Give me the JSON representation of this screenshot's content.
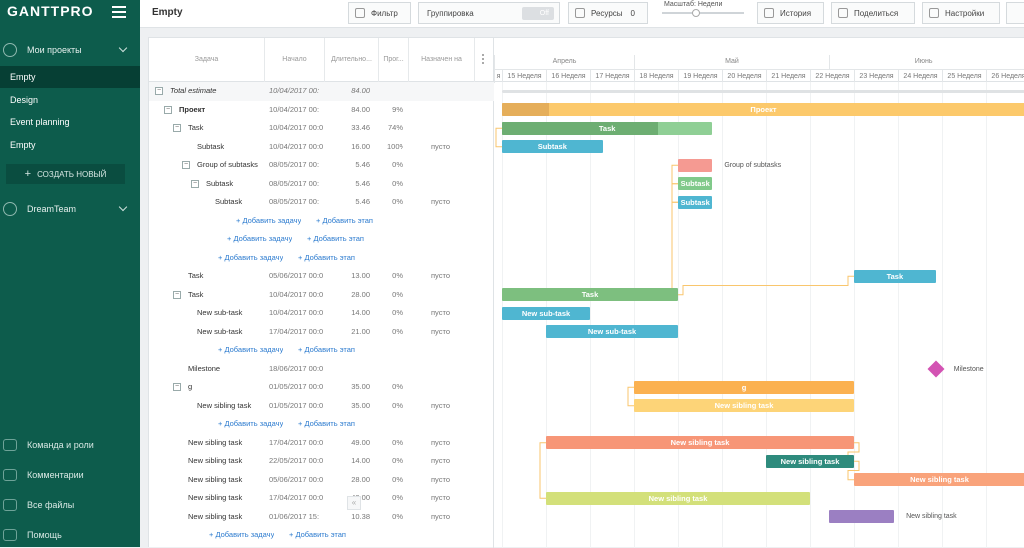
{
  "app": {
    "logo": "GANTTPRO",
    "project_title": "Empty"
  },
  "sidebar": {
    "my_projects": "Мои проекты",
    "projects": [
      {
        "label": "Empty",
        "active": true
      },
      {
        "label": "Design",
        "active": false
      },
      {
        "label": "Event planning",
        "active": false
      },
      {
        "label": "Empty",
        "active": false
      }
    ],
    "create_button": "СОЗДАТЬ НОВЫЙ",
    "team": "DreamTeam",
    "footer": [
      "Команда и роли",
      "Комментарии",
      "Все файлы",
      "Помощь"
    ]
  },
  "header": {
    "filter": "Фильтр",
    "grouping": "Группировка",
    "grouping_toggle": "Off",
    "resources": "Ресурсы",
    "resources_count": "0",
    "zoom_label": "Масштаб: Недели",
    "history": "История",
    "share": "Поделиться",
    "settings": "Настройки"
  },
  "grid": {
    "columns": [
      "Задача",
      "Начало",
      "Длительно...",
      "Прог...",
      "Назначен на"
    ],
    "rows": [
      {
        "type": "total",
        "name": "Total estimate",
        "start": "10/04/2017 00:",
        "duration": "84.00",
        "progress": "",
        "assigned": "",
        "indent": 0,
        "toggle": true
      },
      {
        "type": "task",
        "name": "Проект",
        "bold": true,
        "start": "10/04/2017 00:",
        "duration": "84.00",
        "progress": "9%",
        "assigned": "",
        "indent": 1,
        "toggle": true
      },
      {
        "type": "task",
        "name": "Task",
        "start": "10/04/2017 00:0",
        "duration": "33.46",
        "progress": "74%",
        "assigned": "",
        "indent": 2,
        "toggle": true
      },
      {
        "type": "task",
        "name": "Subtask",
        "start": "10/04/2017 00:0",
        "duration": "16.00",
        "progress": "100%",
        "assigned": "пусто",
        "indent": 3,
        "toggle": false
      },
      {
        "type": "task",
        "name": "Group of subtasks",
        "start": "08/05/2017 00:",
        "duration": "5.46",
        "progress": "0%",
        "assigned": "",
        "indent": 3,
        "toggle": true
      },
      {
        "type": "task",
        "name": "Subtask",
        "start": "08/05/2017 00:",
        "duration": "5.46",
        "progress": "0%",
        "assigned": "",
        "indent": 4,
        "toggle": true
      },
      {
        "type": "task",
        "name": "Subtask",
        "start": "08/05/2017 00:",
        "duration": "5.46",
        "progress": "0%",
        "assigned": "пусто",
        "indent": 5,
        "toggle": false
      },
      {
        "type": "add",
        "task": "+ Добавить задачу",
        "stage": "+ Добавить этап",
        "indent": 5
      },
      {
        "type": "add",
        "task": "+ Добавить задачу",
        "stage": "+ Добавить этап",
        "indent": 4
      },
      {
        "type": "add",
        "task": "+ Добавить задачу",
        "stage": "+ Добавить этап",
        "indent": 3
      },
      {
        "type": "task",
        "name": "Task",
        "start": "05/06/2017 00:0",
        "duration": "13.00",
        "progress": "0%",
        "assigned": "пусто",
        "indent": 2,
        "toggle": false
      },
      {
        "type": "task",
        "name": "Task",
        "start": "10/04/2017 00:0",
        "duration": "28.00",
        "progress": "0%",
        "assigned": "",
        "indent": 2,
        "toggle": true
      },
      {
        "type": "task",
        "name": "New sub-task",
        "start": "10/04/2017 00:0",
        "duration": "14.00",
        "progress": "0%",
        "assigned": "пусто",
        "indent": 3,
        "toggle": false
      },
      {
        "type": "task",
        "name": "New sub-task",
        "start": "17/04/2017 00:0",
        "duration": "21.00",
        "progress": "0%",
        "assigned": "пусто",
        "indent": 3,
        "toggle": false
      },
      {
        "type": "add",
        "task": "+ Добавить задачу",
        "stage": "+ Добавить этап",
        "indent": 3
      },
      {
        "type": "task",
        "name": "Milestone",
        "start": "18/06/2017 00:0",
        "duration": "",
        "progress": "",
        "assigned": "",
        "indent": 2,
        "toggle": false
      },
      {
        "type": "task",
        "name": "g",
        "start": "01/05/2017 00:0",
        "duration": "35.00",
        "progress": "0%",
        "assigned": "",
        "indent": 2,
        "toggle": true
      },
      {
        "type": "task",
        "name": "New sibling task",
        "start": "01/05/2017 00:0",
        "duration": "35.00",
        "progress": "0%",
        "assigned": "пусто",
        "indent": 3,
        "toggle": false
      },
      {
        "type": "add",
        "task": "+ Добавить задачу",
        "stage": "+ Добавить этап",
        "indent": 3
      },
      {
        "type": "task",
        "name": "New sibling task",
        "start": "17/04/2017 00:0",
        "duration": "49.00",
        "progress": "0%",
        "assigned": "пусто",
        "indent": 2,
        "toggle": false
      },
      {
        "type": "task",
        "name": "New sibling task",
        "start": "22/05/2017 00:0",
        "duration": "14.00",
        "progress": "0%",
        "assigned": "пусто",
        "indent": 2,
        "toggle": false
      },
      {
        "type": "task",
        "name": "New sibling task",
        "start": "05/06/2017 00:0",
        "duration": "28.00",
        "progress": "0%",
        "assigned": "пусто",
        "indent": 2,
        "toggle": false
      },
      {
        "type": "task",
        "name": "New sibling task",
        "start": "17/04/2017 00:0",
        "duration": "42.00",
        "progress": "0%",
        "assigned": "пусто",
        "indent": 2,
        "toggle": false
      },
      {
        "type": "task",
        "name": "New sibling task",
        "start": "01/06/2017 15:",
        "duration": "10.38",
        "progress": "0%",
        "assigned": "пусто",
        "indent": 2,
        "toggle": false
      },
      {
        "type": "add",
        "task": "+ Добавить задачу",
        "stage": "+ Добавить этап",
        "indent": 2
      }
    ]
  },
  "timeline": {
    "months": [
      "Апрель",
      "Май",
      "Июнь"
    ],
    "weeks": [
      "я",
      "15 Неделя",
      "16 Неделя",
      "17 Неделя",
      "18 Неделя",
      "19 Неделя",
      "20 Неделя",
      "21 Неделя",
      "22 Неделя",
      "23 Неделя",
      "24 Неделя",
      "25 Неделя",
      "26 Неделя"
    ],
    "bars": [
      {
        "row": 1,
        "start": "10/04/2017",
        "duration": 84,
        "progress": 0.09,
        "label": "Проект",
        "color": "#fcc96b",
        "progress_color": "#e5ae5a"
      },
      {
        "row": 2,
        "start": "10/04/2017",
        "duration": 33.46,
        "progress": 0.74,
        "label": "Task",
        "color": "#8fcf95",
        "progress_color": "#6dae72"
      },
      {
        "row": 3,
        "start": "10/04/2017",
        "duration": 16,
        "progress": 1,
        "label": "Subtask",
        "color": "#4fb6d1",
        "progress_color": "#4fb6d1"
      },
      {
        "row": 4,
        "start": "08/05/2017",
        "duration": 5.46,
        "progress": 0,
        "label": "Group of subtasks",
        "outside": true,
        "color": "#f59a92"
      },
      {
        "row": 5,
        "start": "08/05/2017",
        "duration": 5.46,
        "progress": 0,
        "label": "Subtask",
        "color": "#80c98a"
      },
      {
        "row": 6,
        "start": "08/05/2017",
        "duration": 5.46,
        "progress": 0,
        "label": "Subtask",
        "color": "#4fb6d1"
      },
      {
        "row": 10,
        "start": "05/06/2017",
        "duration": 13,
        "progress": 0,
        "label": "Task",
        "color": "#4fb6d1"
      },
      {
        "row": 11,
        "start": "10/04/2017",
        "duration": 28,
        "progress": 0,
        "label": "Task",
        "color": "#7dbf7f"
      },
      {
        "row": 12,
        "start": "10/04/2017",
        "duration": 14,
        "progress": 0,
        "label": "New sub-task",
        "color": "#4fb6d1"
      },
      {
        "row": 13,
        "start": "17/04/2017",
        "duration": 21,
        "progress": 0,
        "label": "New sub-task",
        "color": "#4fb6d1"
      },
      {
        "row": 16,
        "start": "01/05/2017",
        "duration": 35,
        "progress": 0,
        "label": "g",
        "color": "#fbb150"
      },
      {
        "row": 17,
        "start": "01/05/2017",
        "duration": 35,
        "progress": 0,
        "label": "New sibling task",
        "color": "#fdd478"
      },
      {
        "row": 19,
        "start": "17/04/2017",
        "duration": 49,
        "progress": 0,
        "label": "New sibling task",
        "color": "#f79677"
      },
      {
        "row": 20,
        "start": "22/05/2017",
        "duration": 14,
        "progress": 0,
        "label": "New sibling task",
        "color": "#2e8b7d"
      },
      {
        "row": 21,
        "start": "05/06/2017",
        "duration": 28,
        "progress": 0,
        "label": "New sibling task",
        "color": "#f9a37b"
      },
      {
        "row": 22,
        "start": "17/04/2017",
        "duration": 42,
        "progress": 0,
        "label": "New sibling task",
        "color": "#d3e07a"
      },
      {
        "row": 23,
        "start": "01/06/2017",
        "duration": 10.38,
        "progress": 0,
        "label": "New sibling task",
        "outside": true,
        "color": "#9b7fc2"
      }
    ],
    "milestone": {
      "row": 15,
      "date": "18/06/2017",
      "label": "Milestone",
      "color": "#d353b3"
    }
  }
}
